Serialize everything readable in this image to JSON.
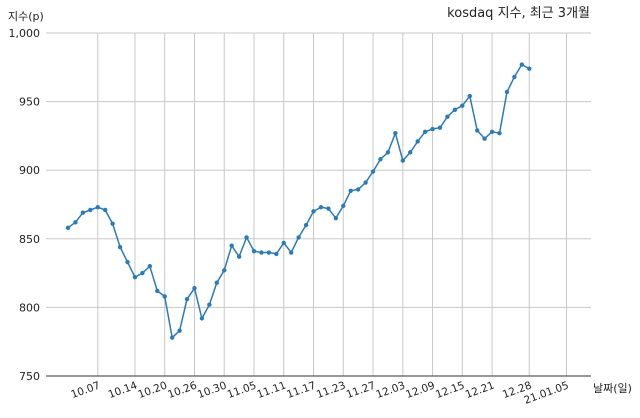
{
  "chart_data": {
    "type": "line",
    "title": "kosdaq 지수, 최근 3개월",
    "xlabel": "날짜(일)",
    "ylabel": "지수(p)",
    "ylim": [
      750,
      1000
    ],
    "yticks": [
      750,
      800,
      850,
      900,
      950,
      1000
    ],
    "ytick_labels": [
      "750",
      "800",
      "850",
      "900",
      "950",
      "1,000"
    ],
    "xtick_labels": [
      "10.07",
      "10.14",
      "10.20",
      "10.26",
      "10.30",
      "11.05",
      "11.11",
      "11.17",
      "11.23",
      "11.27",
      "12.03",
      "12.09",
      "12.15",
      "12.21",
      "12.28",
      "21.01.05"
    ],
    "xtick_index": [
      4,
      9,
      13,
      17,
      21,
      25,
      29,
      33,
      37,
      41,
      45,
      49,
      53,
      57,
      62,
      67
    ],
    "grid": true,
    "color": "#2b7bb9",
    "values": [
      858,
      862,
      869,
      871,
      873,
      871,
      861,
      844,
      833,
      822,
      825,
      830,
      812,
      808,
      778,
      783,
      806,
      814,
      792,
      802,
      818,
      827,
      845,
      837,
      851,
      841,
      840,
      840,
      839,
      847,
      840,
      851,
      860,
      870,
      873,
      872,
      865,
      874,
      885,
      886,
      891,
      899,
      908,
      913,
      927,
      907,
      913,
      921,
      928,
      930,
      931,
      939,
      944,
      947,
      954,
      929,
      923,
      928,
      927,
      957,
      968,
      977,
      974
    ]
  }
}
